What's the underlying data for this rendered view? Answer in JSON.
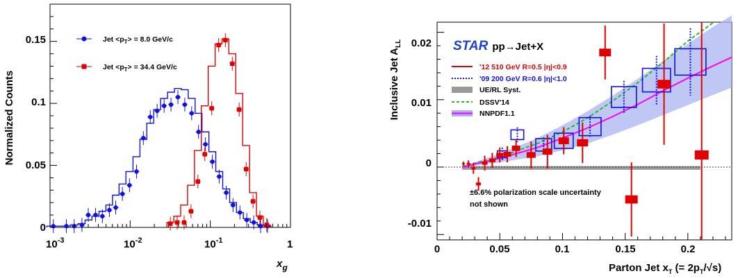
{
  "chart_data": [
    {
      "type": "line",
      "title": "",
      "xlabel": "x",
      "xlabel_sub": "g",
      "ylabel": "Normalized Counts",
      "xscale": "log",
      "xlim": [
        0.001,
        1
      ],
      "ylim": [
        0,
        0.18
      ],
      "x_ticklabels": [
        "10",
        "-3",
        "10",
        "-2",
        "10",
        "-1",
        "1"
      ],
      "y_ticklabels": [
        "0",
        "0.05",
        "0.1",
        "0.15"
      ],
      "legend_position": "top-left",
      "series": [
        {
          "name": "Jet <p",
          "name_sub": "T",
          "name_rest": "> = 8.0 GeV/c",
          "color": "#1010e0",
          "marker": "circle",
          "x": [
            0.0011,
            0.0016,
            0.002,
            0.0025,
            0.003,
            0.0037,
            0.0045,
            0.0055,
            0.0066,
            0.008,
            0.0098,
            0.012,
            0.0146,
            0.0178,
            0.0217,
            0.0265,
            0.0323,
            0.0394,
            0.048,
            0.0585,
            0.0713,
            0.0869,
            0.106,
            0.129,
            0.158,
            0.192,
            0.234,
            0.285,
            0.348,
            0.424,
            0.517
          ],
          "y": [
            0.001,
            0.001,
            0.001,
            0.002,
            0.01,
            0.01,
            0.009,
            0.014,
            0.016,
            0.027,
            0.034,
            0.045,
            0.072,
            0.089,
            0.094,
            0.098,
            0.099,
            0.105,
            0.099,
            0.092,
            0.077,
            0.067,
            0.053,
            0.041,
            0.028,
            0.018,
            0.012,
            0.006,
            0.004,
            0.001,
            0.001
          ],
          "step": [
            0.001,
            0.001,
            0.002,
            0.003,
            0.006,
            0.009,
            0.013,
            0.018,
            0.026,
            0.035,
            0.045,
            0.057,
            0.071,
            0.084,
            0.095,
            0.104,
            0.109,
            0.112,
            0.111,
            0.104,
            0.092,
            0.077,
            0.061,
            0.045,
            0.031,
            0.02,
            0.012,
            0.007,
            0.004,
            0.002,
            0.001
          ]
        },
        {
          "name": "Jet <p",
          "name_sub": "T",
          "name_rest": "> = 34.4 GeV/c",
          "color": "#e00000",
          "marker": "square",
          "x": [
            0.0317,
            0.0386,
            0.0471,
            0.0574,
            0.07,
            0.0853,
            0.104,
            0.127,
            0.154,
            0.188,
            0.229,
            0.28,
            0.341,
            0.415,
            0.506
          ],
          "y": [
            0.003,
            0.004,
            0.004,
            0.013,
            0.037,
            0.059,
            0.096,
            0.147,
            0.151,
            0.132,
            0.095,
            0.047,
            0.021,
            0.008,
            0.002
          ],
          "step": [
            0.004,
            0.009,
            0.018,
            0.034,
            0.062,
            0.098,
            0.13,
            0.148,
            0.152,
            0.14,
            0.108,
            0.066,
            0.028,
            0.009,
            0.002
          ]
        }
      ]
    },
    {
      "type": "scatter",
      "title": "STAR",
      "title_rest": "pp→Jet+X",
      "xlabel": "Parton Jet x",
      "xlabel_sub": "T",
      "xlabel_rest": " (= 2p",
      "xlabel_sub2": "T",
      "xlabel_rest2": "/√s)",
      "ylabel": "Inclusive Jet A",
      "ylabel_sub": "LL",
      "xlim": [
        0,
        0.235
      ],
      "ylim": [
        -0.0108,
        0.0215
      ],
      "x_ticklabels": [
        "0",
        "0.05",
        "0.1",
        "0.15",
        "0.2"
      ],
      "y_ticklabels": [
        "-0.01",
        "0",
        "0.01",
        "0.02"
      ],
      "legend_position": "top-left",
      "annotation": [
        "±6.6% polarization scale uncertainty",
        "not shown"
      ],
      "series": [
        {
          "name": "'12 510 GeV R=0.5  |η|<0.9",
          "color": "#e00000",
          "x": [
            0.021,
            0.025,
            0.029,
            0.033,
            0.038,
            0.044,
            0.05,
            0.056,
            0.063,
            0.075,
            0.088,
            0.101,
            0.116,
            0.134,
            0.155,
            0.181,
            0.211
          ],
          "y": [
            0.0005,
            0.0005,
            -0.0002,
            -0.0025,
            0.0006,
            0.001,
            0.0018,
            0.0019,
            0.0028,
            0.0018,
            0.0023,
            0.0039,
            0.0036,
            0.017,
            -0.0048,
            0.0123,
            0.0018
          ],
          "err": [
            0.0003,
            0.0005,
            0.0008,
            0.001,
            0.0011,
            0.0011,
            0.0011,
            0.0012,
            0.0013,
            0.002,
            0.0025,
            0.002,
            0.003,
            0.004,
            0.0055,
            0.009,
            0.022
          ]
        },
        {
          "name": "'09 200 GeV R=0.6  |η|<1.0",
          "color": "#1010e0",
          "x": [
            0.052,
            0.064,
            0.085,
            0.101,
            0.122,
            0.149,
            0.175,
            0.202
          ],
          "y": [
            0.0019,
            0.0048,
            0.0033,
            0.0039,
            0.006,
            0.0104,
            0.0129,
            0.0156
          ],
          "err": [
            0.001,
            0.0011,
            0.0011,
            0.0011,
            0.0016,
            0.0024,
            0.0036,
            0.005
          ]
        }
      ],
      "band": {
        "name": "UE/RL Syst.",
        "color": "#999999"
      },
      "curves": [
        {
          "name": "DSSV'14",
          "color": "#22bb22",
          "x": [
            0.02,
            0.05,
            0.08,
            0.1,
            0.12,
            0.14,
            0.16,
            0.18,
            0.2,
            0.22,
            0.235
          ],
          "y": [
            0.0001,
            0.0015,
            0.0035,
            0.0052,
            0.0073,
            0.0098,
            0.0125,
            0.0155,
            0.0187,
            0.0214,
            0.023
          ]
        },
        {
          "name": "NNPDF1.1",
          "color": "#ff00ff",
          "band_color": "#a9b4f0",
          "x": [
            0.02,
            0.05,
            0.08,
            0.1,
            0.12,
            0.14,
            0.16,
            0.18,
            0.2,
            0.22,
            0.235
          ],
          "y": [
            0.0,
            0.0013,
            0.0029,
            0.0043,
            0.0058,
            0.0075,
            0.0093,
            0.0113,
            0.0132,
            0.015,
            0.0163
          ],
          "lo": [
            0.0,
            0.0007,
            0.0016,
            0.0025,
            0.0035,
            0.0048,
            0.0062,
            0.0077,
            0.0092,
            0.0107,
            0.0118
          ],
          "hi": [
            0.0001,
            0.002,
            0.0043,
            0.0062,
            0.0083,
            0.0106,
            0.0131,
            0.0157,
            0.0183,
            0.0208,
            0.0225
          ]
        }
      ]
    }
  ]
}
